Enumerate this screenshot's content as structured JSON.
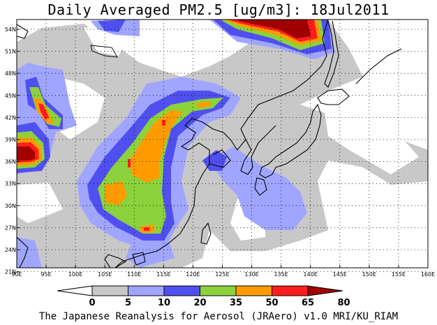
{
  "title": "Daily Averaged PM2.5 [ug/m3]: 18Jul2011",
  "credit": "The Japanese Reanalysis for Aerosol (JRAero) v1.0 MRI/KU_RIAM",
  "lon_ticks": [
    "90E",
    "95E",
    "100E",
    "105E",
    "110E",
    "115E",
    "120E",
    "125E",
    "130E",
    "135E",
    "140E",
    "145E",
    "150E",
    "155E",
    "160E"
  ],
  "lat_ticks": [
    "54N",
    "51N",
    "48N",
    "45N",
    "42N",
    "39N",
    "36N",
    "33N",
    "30N",
    "27N",
    "24N",
    "21N"
  ],
  "colorbar": {
    "labels": [
      "0",
      "5",
      "10",
      "20",
      "35",
      "50",
      "65",
      "80"
    ],
    "colors": [
      "#ffffff",
      "#c8c8c8",
      "#a0a5ff",
      "#5050f0",
      "#8cd23c",
      "#ff9b00",
      "#ff1e1e",
      "#a00000"
    ]
  }
}
